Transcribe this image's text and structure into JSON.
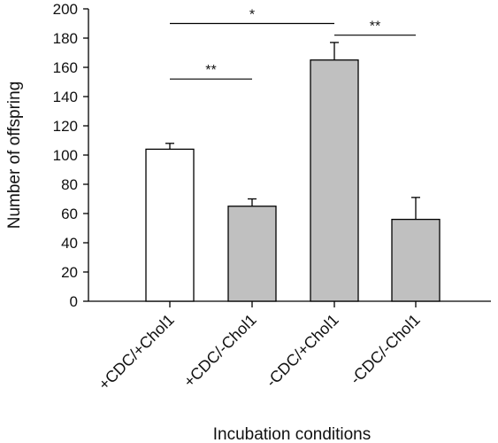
{
  "chart_data": {
    "type": "bar",
    "title": "",
    "xlabel": "Incubation conditions",
    "ylabel": "Number of offspring",
    "ylim": [
      0,
      200
    ],
    "yticks": [
      0,
      20,
      40,
      60,
      80,
      100,
      120,
      140,
      160,
      180,
      200
    ],
    "grid": false,
    "legend": "none",
    "categories": [
      "+CDC/+Chol1",
      "+CDC/-Chol1",
      "-CDC/+Chol1",
      "-CDC/-Chol1"
    ],
    "values": [
      104,
      65,
      165,
      56
    ],
    "errors": [
      4,
      5,
      12,
      15
    ],
    "bar_colors": [
      "#ffffff",
      "#c0c0c0",
      "#c0c0c0",
      "#c0c0c0"
    ],
    "significance": [
      {
        "from": 0,
        "to": 1,
        "label": "**",
        "y": 152
      },
      {
        "from": 0,
        "to": 2,
        "label": "*",
        "y": 190
      },
      {
        "from": 2,
        "to": 3,
        "label": "**",
        "y": 182
      }
    ]
  }
}
